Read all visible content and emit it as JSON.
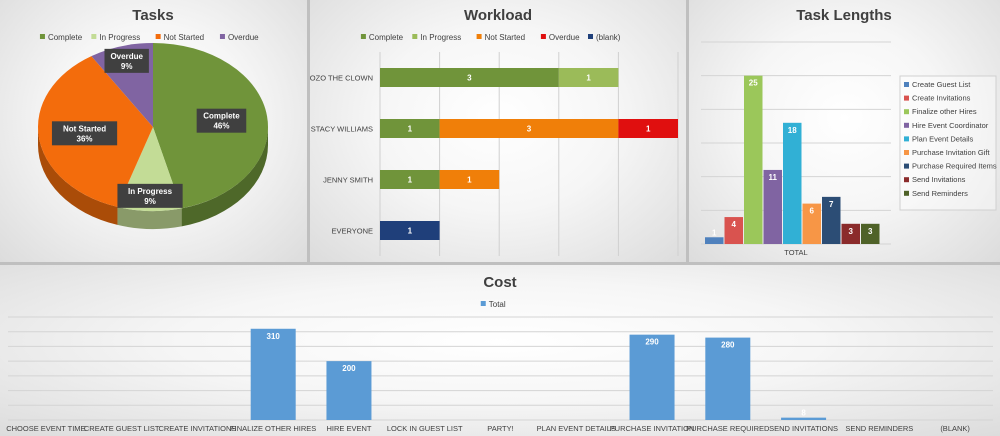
{
  "colors": {
    "complete": "#70943a",
    "in_progress": "#c3dc96",
    "not_started": "#f36c0c",
    "overdue": "#8064a2",
    "blank": "#1f3f7a",
    "cost_bar": "#5b9bd5"
  },
  "chart_data": [
    {
      "type": "pie",
      "title": "Tasks",
      "legend_position": "top",
      "slices": [
        {
          "name": "Complete",
          "percent": 46,
          "label": "Complete\n46%",
          "color": "#70943a"
        },
        {
          "name": "In Progress",
          "percent": 9,
          "label": "In Progress\n9%",
          "color": "#c3dc96"
        },
        {
          "name": "Not Started",
          "percent": 36,
          "label": "Not Started\n36%",
          "color": "#f36c0c"
        },
        {
          "name": "Overdue",
          "percent": 9,
          "label": "Overdue\n9%",
          "color": "#8064a2"
        }
      ]
    },
    {
      "type": "bar",
      "orientation": "horizontal",
      "stacked": true,
      "title": "Workload",
      "legend_position": "top",
      "categories": [
        "BOZO THE CLOWN",
        "STACY WILLIAMS",
        "JENNY SMITH",
        "EVERYONE"
      ],
      "series": [
        {
          "name": "Complete",
          "color": "#70943a",
          "values": [
            3,
            1,
            1,
            0
          ]
        },
        {
          "name": "In Progress",
          "color": "#9bbb59",
          "values": [
            1,
            0,
            0,
            0
          ]
        },
        {
          "name": "Not Started",
          "color": "#f07f09",
          "values": [
            0,
            3,
            1,
            0
          ]
        },
        {
          "name": "Overdue",
          "color": "#e00f0f",
          "values": [
            0,
            1,
            0,
            0
          ]
        },
        {
          "name": "(blank)",
          "color": "#1f3f7a",
          "values": [
            0,
            0,
            0,
            1
          ]
        }
      ],
      "xlim": [
        0,
        5
      ],
      "grid": true
    },
    {
      "type": "bar",
      "title": "Task Lengths",
      "legend_position": "right",
      "categories": [
        "TOTAL"
      ],
      "ylim": [
        0,
        30
      ],
      "series": [
        {
          "name": "Create Guest List",
          "color": "#4f81bd",
          "values": [
            1
          ]
        },
        {
          "name": "Create Invitations",
          "color": "#d9534f",
          "values": [
            4
          ]
        },
        {
          "name": "Finalize other Hires",
          "color": "#9bc75a",
          "values": [
            25
          ]
        },
        {
          "name": "Hire Event Coordinator",
          "color": "#8064a2",
          "values": [
            11
          ]
        },
        {
          "name": "Plan Event Details",
          "color": "#31b0d5",
          "values": [
            18
          ]
        },
        {
          "name": "Purchase Invitation Gift",
          "color": "#f79646",
          "values": [
            6
          ]
        },
        {
          "name": "Purchase Required Items",
          "color": "#2c4d75",
          "values": [
            7
          ]
        },
        {
          "name": "Send Invitations",
          "color": "#8b2b2b",
          "values": [
            3
          ]
        },
        {
          "name": "Send Reminders",
          "color": "#4f6228",
          "values": [
            3
          ]
        }
      ],
      "grid": true
    },
    {
      "type": "bar",
      "title": "Cost",
      "legend_position": "top",
      "categories": [
        "CHOOSE EVENT TIME",
        "CREATE GUEST LIST",
        "CREATE INVITATIONS",
        "FINALIZE OTHER HIRES",
        "HIRE EVENT",
        "LOCK IN GUEST LIST",
        "PARTY!",
        "PLAN EVENT DETAILS",
        "PURCHASE INVITATION",
        "PURCHASE REQUIRED",
        "SEND INVITATIONS",
        "SEND REMINDERS",
        "(BLANK)"
      ],
      "series": [
        {
          "name": "Total",
          "color": "#5b9bd5",
          "values": [
            null,
            null,
            null,
            310,
            200,
            null,
            null,
            null,
            290,
            280,
            8,
            null,
            null
          ]
        }
      ],
      "ylim": [
        0,
        350
      ],
      "grid": true
    }
  ]
}
